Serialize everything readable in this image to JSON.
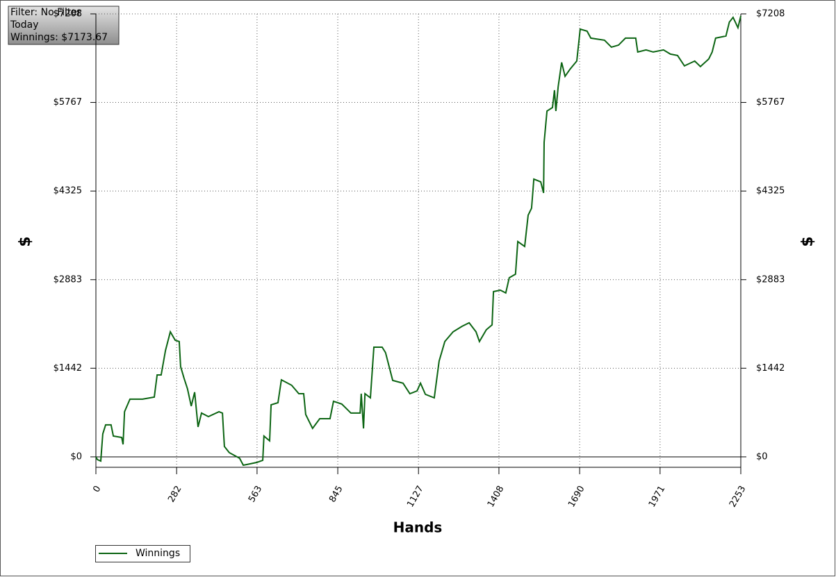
{
  "chart_data": {
    "type": "line",
    "annotations": [
      "Filter: No Filter",
      "Today",
      "Winnings: $7173.67"
    ],
    "x_label": "Hands",
    "y_label": "$",
    "y2_label": "$",
    "xlim": [
      0,
      2253
    ],
    "ylim": [
      -170,
      7208
    ],
    "xticks": [
      0,
      282,
      563,
      845,
      1127,
      1408,
      1690,
      1971,
      2253
    ],
    "yticks": [
      {
        "value": 0,
        "label": "$0"
      },
      {
        "value": 1442,
        "label": "$1442"
      },
      {
        "value": 2883,
        "label": "$2883"
      },
      {
        "value": 4325,
        "label": "$4325"
      },
      {
        "value": 5767,
        "label": "$5767"
      },
      {
        "value": 7208,
        "label": "$7208"
      }
    ],
    "grid": true,
    "legend": "bottom-left",
    "x": [
      0,
      5,
      17,
      24,
      34,
      53,
      61,
      90,
      95,
      100,
      119,
      163,
      204,
      214,
      228,
      243,
      260,
      277,
      291,
      296,
      308,
      320,
      333,
      345,
      357,
      369,
      393,
      430,
      442,
      449,
      466,
      502,
      515,
      539,
      563,
      583,
      587,
      607,
      612,
      636,
      648,
      684,
      709,
      726,
      733,
      757,
      782,
      818,
      830,
      859,
      891,
      923,
      927,
      935,
      940,
      959,
      971,
      1000,
      1012,
      1037,
      1073,
      1097,
      1122,
      1134,
      1151,
      1182,
      1199,
      1219,
      1248,
      1279,
      1304,
      1328,
      1340,
      1364,
      1384,
      1389,
      1413,
      1432,
      1444,
      1466,
      1474,
      1498,
      1510,
      1522,
      1530,
      1554,
      1564,
      1566,
      1576,
      1595,
      1602,
      1607,
      1615,
      1627,
      1639,
      1656,
      1680,
      1692,
      1716,
      1729,
      1777,
      1801,
      1826,
      1850,
      1886,
      1893,
      1922,
      1947,
      1983,
      2007,
      2032,
      2056,
      2092,
      2112,
      2141,
      2153,
      2165,
      2201,
      2213,
      2226,
      2243,
      2253
    ],
    "series": [
      {
        "name": "Winnings",
        "color": "#0b6412",
        "values": [
          0,
          -45,
          -68,
          373,
          520,
          520,
          339,
          316,
          203,
          734,
          938,
          938,
          972,
          1333,
          1333,
          1729,
          2034,
          1898,
          1876,
          1469,
          1277,
          1107,
          825,
          1051,
          486,
          712,
          655,
          734,
          712,
          169,
          68,
          -23,
          -136,
          -113,
          -90,
          -56,
          339,
          260,
          847,
          881,
          1254,
          1164,
          1028,
          1028,
          689,
          463,
          621,
          621,
          904,
          859,
          712,
          712,
          1028,
          463,
          1028,
          960,
          1785,
          1785,
          1695,
          1243,
          1198,
          1028,
          1073,
          1198,
          1017,
          960,
          1559,
          1876,
          2034,
          2124,
          2181,
          2034,
          1876,
          2068,
          2147,
          2689,
          2712,
          2667,
          2915,
          2972,
          3503,
          3424,
          3932,
          4045,
          4520,
          4475,
          4294,
          5119,
          5627,
          5684,
          5966,
          5627,
          6023,
          6418,
          6192,
          6305,
          6441,
          6960,
          6927,
          6814,
          6780,
          6667,
          6701,
          6814,
          6814,
          6588,
          6622,
          6588,
          6622,
          6554,
          6531,
          6362,
          6441,
          6350,
          6475,
          6588,
          6814,
          6848,
          7073,
          7152,
          6983,
          7173.67
        ]
      }
    ]
  }
}
